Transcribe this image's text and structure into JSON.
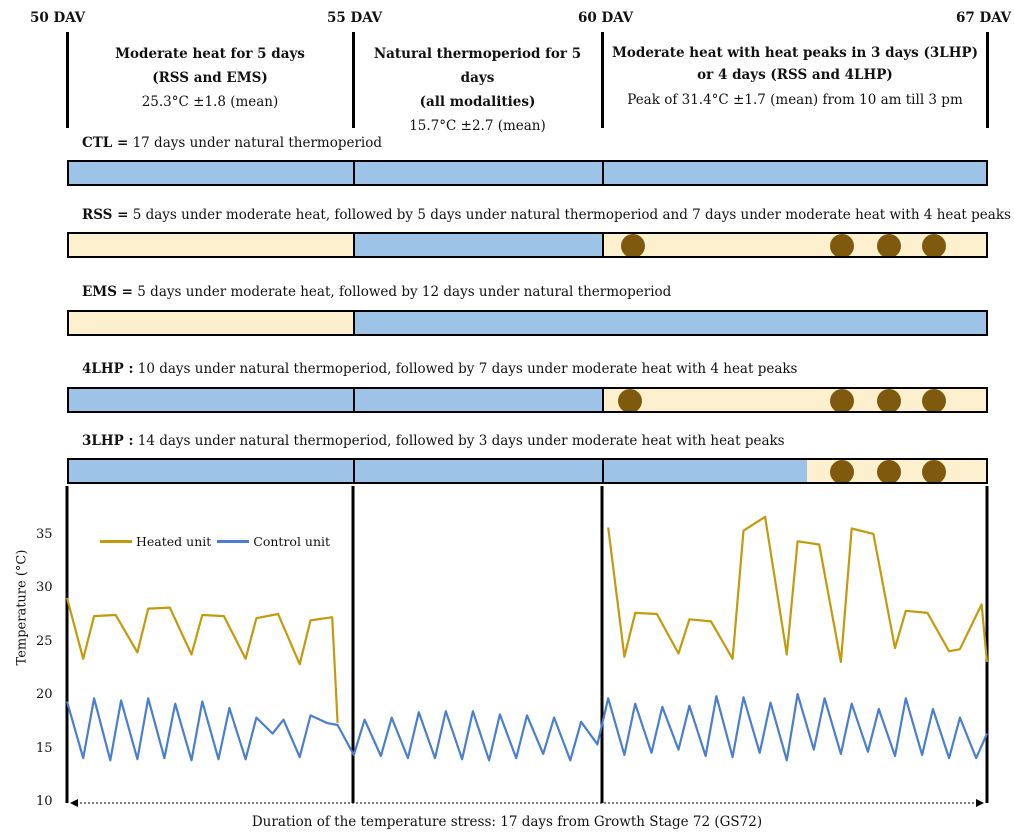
{
  "timeline": {
    "dav_labels": [
      "50 DAV",
      "55 DAV",
      "60 DAV",
      "67 DAV"
    ]
  },
  "phases": [
    {
      "line1": "Moderate heat for 5 days",
      "line2": "(RSS and EMS)",
      "line3": "25.3°C ±1.8 (mean)"
    },
    {
      "line1": "Natural thermoperiod for 5 days",
      "line2": "(all modalities)",
      "line3": "15.7°C ±2.7 (mean)"
    },
    {
      "line1": "Moderate heat with heat peaks in 3 days (3LHP)",
      "line2": "or 4 days (RSS and 4LHP)",
      "line3": "Peak of 31.4°C ±1.7 (mean) from 10 am till 3 pm"
    }
  ],
  "modalities": [
    {
      "code": "CTL =",
      "desc": " 17 days under natural thermoperiod"
    },
    {
      "code": "RSS =",
      "desc": " 5 days under moderate heat, followed by 5 days under natural thermoperiod and 7 days under moderate heat with 4 heat peaks"
    },
    {
      "code": "EMS =",
      "desc": " 5 days under moderate heat, followed by 12 days under natural thermoperiod"
    },
    {
      "code": "4LHP :",
      "desc": " 10 days under natural thermoperiod, followed by 7 days under moderate heat with 4 heat peaks"
    },
    {
      "code": "3LHP :",
      "desc": " 14 days under natural thermoperiod, followed by 3 days under moderate heat with heat peaks"
    }
  ],
  "colors": {
    "heated": "#c49a0c",
    "control": "#4a7fcf",
    "moderate_heat_fill": "#fdf0cf",
    "natural_fill": "#9dc3e6",
    "heat_peak_dot": "#7f5a0e"
  },
  "chart_data": {
    "type": "line",
    "x_unit": "DAV",
    "xlim": [
      50,
      67
    ],
    "ylim": [
      10,
      38
    ],
    "yticks": [
      10,
      15,
      20,
      25,
      30,
      35
    ],
    "ylabel": "Temperature (°C)",
    "xlabel": "Duration of the temperature stress:  17 days from Growth Stage 72 (GS72)",
    "legend_position": "top-left",
    "series": [
      {
        "name": "Heated unit",
        "x": [
          50.0,
          50.3,
          50.5,
          50.9,
          51.3,
          51.5,
          51.9,
          52.3,
          52.5,
          52.9,
          53.3,
          53.5,
          53.9,
          54.3,
          54.5,
          54.9,
          55.0,
          60.0,
          60.3,
          60.5,
          60.9,
          61.3,
          61.5,
          61.9,
          62.3,
          62.5,
          62.9,
          63.3,
          63.5,
          63.9,
          64.3,
          64.5,
          64.9,
          65.3,
          65.5,
          65.9,
          66.3,
          66.5,
          66.9,
          67.0
        ],
        "y": [
          29.2,
          23.5,
          27.5,
          27.6,
          24.1,
          28.2,
          28.3,
          23.9,
          27.6,
          27.5,
          23.5,
          27.3,
          27.7,
          23.0,
          27.1,
          27.4,
          17.5,
          35.8,
          23.7,
          27.8,
          27.7,
          24.0,
          27.2,
          27.0,
          23.5,
          35.5,
          36.8,
          23.9,
          34.5,
          34.2,
          23.2,
          35.7,
          35.2,
          24.5,
          28.0,
          27.8,
          24.2,
          24.4,
          28.6,
          23.2
        ]
      },
      {
        "name": "Control unit",
        "x": [
          50.0,
          50.3,
          50.5,
          50.8,
          51.0,
          51.3,
          51.5,
          51.8,
          52.0,
          52.3,
          52.5,
          52.8,
          53.0,
          53.3,
          53.5,
          53.8,
          54.0,
          54.3,
          54.5,
          54.8,
          55.0,
          55.3,
          55.5,
          55.8,
          56.0,
          56.3,
          56.5,
          56.8,
          57.0,
          57.3,
          57.5,
          57.8,
          58.0,
          58.3,
          58.5,
          58.8,
          59.0,
          59.3,
          59.5,
          59.8,
          60.0,
          60.3,
          60.5,
          60.8,
          61.0,
          61.3,
          61.5,
          61.8,
          62.0,
          62.3,
          62.5,
          62.8,
          63.0,
          63.3,
          63.5,
          63.8,
          64.0,
          64.3,
          64.5,
          64.8,
          65.0,
          65.3,
          65.5,
          65.8,
          66.0,
          66.3,
          66.5,
          66.8,
          67.0
        ],
        "y": [
          19.5,
          14.2,
          19.8,
          14.0,
          19.6,
          14.1,
          19.8,
          14.2,
          19.3,
          14.0,
          19.5,
          14.1,
          18.9,
          14.1,
          18.0,
          16.5,
          17.8,
          14.3,
          18.2,
          17.5,
          17.3,
          14.5,
          17.8,
          14.4,
          18.0,
          14.2,
          18.5,
          14.2,
          18.6,
          14.1,
          18.6,
          14.0,
          18.3,
          14.2,
          18.2,
          14.6,
          18.0,
          14.0,
          17.6,
          15.5,
          19.8,
          14.5,
          19.3,
          14.7,
          19.0,
          15.0,
          19.1,
          14.4,
          20.0,
          14.3,
          19.9,
          14.7,
          19.4,
          14.0,
          20.2,
          15.0,
          19.8,
          14.6,
          19.3,
          14.8,
          18.8,
          14.4,
          19.8,
          14.5,
          18.8,
          14.2,
          18.0,
          14.2,
          16.5
        ]
      }
    ]
  }
}
